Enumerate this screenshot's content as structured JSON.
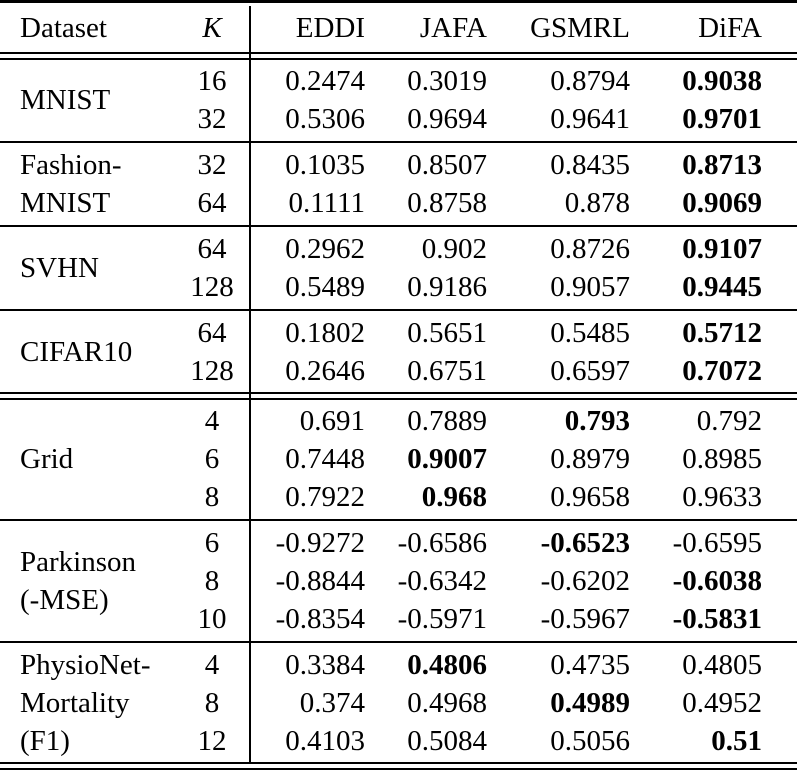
{
  "table": {
    "text_color": "#000000",
    "background_color": "#ffffff",
    "columns": [
      "Dataset",
      "K",
      "EDDI",
      "JAFA",
      "GSMRL",
      "DiFA"
    ],
    "sections": [
      {
        "dataset": "MNIST",
        "dataset_lines": [
          "MNIST"
        ],
        "rule_after": "single",
        "rows": [
          {
            "k": "16",
            "values": [
              "0.2474",
              "0.3019",
              "0.8794",
              "0.9038"
            ],
            "bold_index": 3
          },
          {
            "k": "32",
            "values": [
              "0.5306",
              "0.9694",
              "0.9641",
              "0.9701"
            ],
            "bold_index": 3
          }
        ]
      },
      {
        "dataset": "Fashion-MNIST",
        "dataset_lines": [
          "Fashion-",
          "MNIST"
        ],
        "rule_after": "single",
        "rows": [
          {
            "k": "32",
            "values": [
              "0.1035",
              "0.8507",
              "0.8435",
              "0.8713"
            ],
            "bold_index": 3
          },
          {
            "k": "64",
            "values": [
              "0.1111",
              "0.8758",
              "0.878",
              "0.9069"
            ],
            "bold_index": 3
          }
        ]
      },
      {
        "dataset": "SVHN",
        "dataset_lines": [
          "SVHN"
        ],
        "rule_after": "single",
        "rows": [
          {
            "k": "64",
            "values": [
              "0.2962",
              "0.902",
              "0.8726",
              "0.9107"
            ],
            "bold_index": 3
          },
          {
            "k": "128",
            "values": [
              "0.5489",
              "0.9186",
              "0.9057",
              "0.9445"
            ],
            "bold_index": 3
          }
        ]
      },
      {
        "dataset": "CIFAR10",
        "dataset_lines": [
          "CIFAR10"
        ],
        "rule_after": "double",
        "rows": [
          {
            "k": "64",
            "values": [
              "0.1802",
              "0.5651",
              "0.5485",
              "0.5712"
            ],
            "bold_index": 3
          },
          {
            "k": "128",
            "values": [
              "0.2646",
              "0.6751",
              "0.6597",
              "0.7072"
            ],
            "bold_index": 3
          }
        ]
      },
      {
        "dataset": "Grid",
        "dataset_lines": [
          "Grid"
        ],
        "rule_after": "single",
        "rows": [
          {
            "k": "4",
            "values": [
              "0.691",
              "0.7889",
              "0.793",
              "0.792"
            ],
            "bold_index": 2
          },
          {
            "k": "6",
            "values": [
              "0.7448",
              "0.9007",
              "0.8979",
              "0.8985"
            ],
            "bold_index": 1
          },
          {
            "k": "8",
            "values": [
              "0.7922",
              "0.968",
              "0.9658",
              "0.9633"
            ],
            "bold_index": 1
          }
        ]
      },
      {
        "dataset": "Parkinson (-MSE)",
        "dataset_lines": [
          "Parkinson",
          "(-MSE)"
        ],
        "rule_after": "single",
        "rows": [
          {
            "k": "6",
            "values": [
              "-0.9272",
              "-0.6586",
              "-0.6523",
              "-0.6595"
            ],
            "bold_index": 2
          },
          {
            "k": "8",
            "values": [
              "-0.8844",
              "-0.6342",
              "-0.6202",
              "-0.6038"
            ],
            "bold_index": 3
          },
          {
            "k": "10",
            "values": [
              "-0.8354",
              "-0.5971",
              "-0.5967",
              "-0.5831"
            ],
            "bold_index": 3
          }
        ]
      },
      {
        "dataset": "PhysioNet-Mortality (F1)",
        "dataset_lines": [
          "PhysioNet-",
          "Mortality",
          "(F1)"
        ],
        "rule_after": "double",
        "rows": [
          {
            "k": "4",
            "values": [
              "0.3384",
              "0.4806",
              "0.4735",
              "0.4805"
            ],
            "bold_index": 1
          },
          {
            "k": "8",
            "values": [
              "0.374",
              "0.4968",
              "0.4989",
              "0.4952"
            ],
            "bold_index": 2
          },
          {
            "k": "12",
            "values": [
              "0.4103",
              "0.5084",
              "0.5056",
              "0.51"
            ],
            "bold_index": 3
          }
        ]
      }
    ]
  }
}
